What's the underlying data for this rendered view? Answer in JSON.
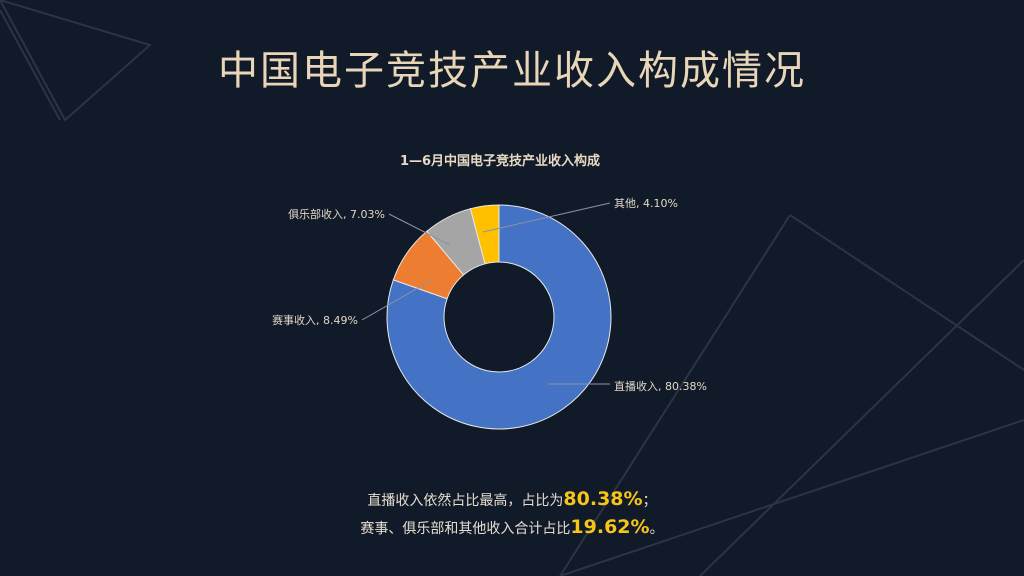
{
  "header": {
    "title": "中国电子竞技产业收入构成情况"
  },
  "chart_data": {
    "type": "pie",
    "variant": "donut",
    "title": "1—6月中国电子竞技产业收入构成",
    "categories": [
      "直播收入",
      "赛事收入",
      "俱乐部收入",
      "其他"
    ],
    "values": [
      80.38,
      8.49,
      7.03,
      4.1
    ],
    "unit": "%",
    "data_labels": [
      "直播收入, 80.38%",
      "赛事收入, 8.49%",
      "俱乐部收入, 7.03%",
      "其他, 4.10%"
    ],
    "colors": [
      "#4472c4",
      "#ed7d31",
      "#a5a5a5",
      "#ffc000"
    ]
  },
  "notes": {
    "line1_text": "直播收入依然占比最高，占比为",
    "line1_value": "80.38%",
    "line1_end": "；",
    "line2_text": "赛事、俱乐部和其他收入合计占比",
    "line2_value": "19.62%",
    "line2_end": "。"
  }
}
